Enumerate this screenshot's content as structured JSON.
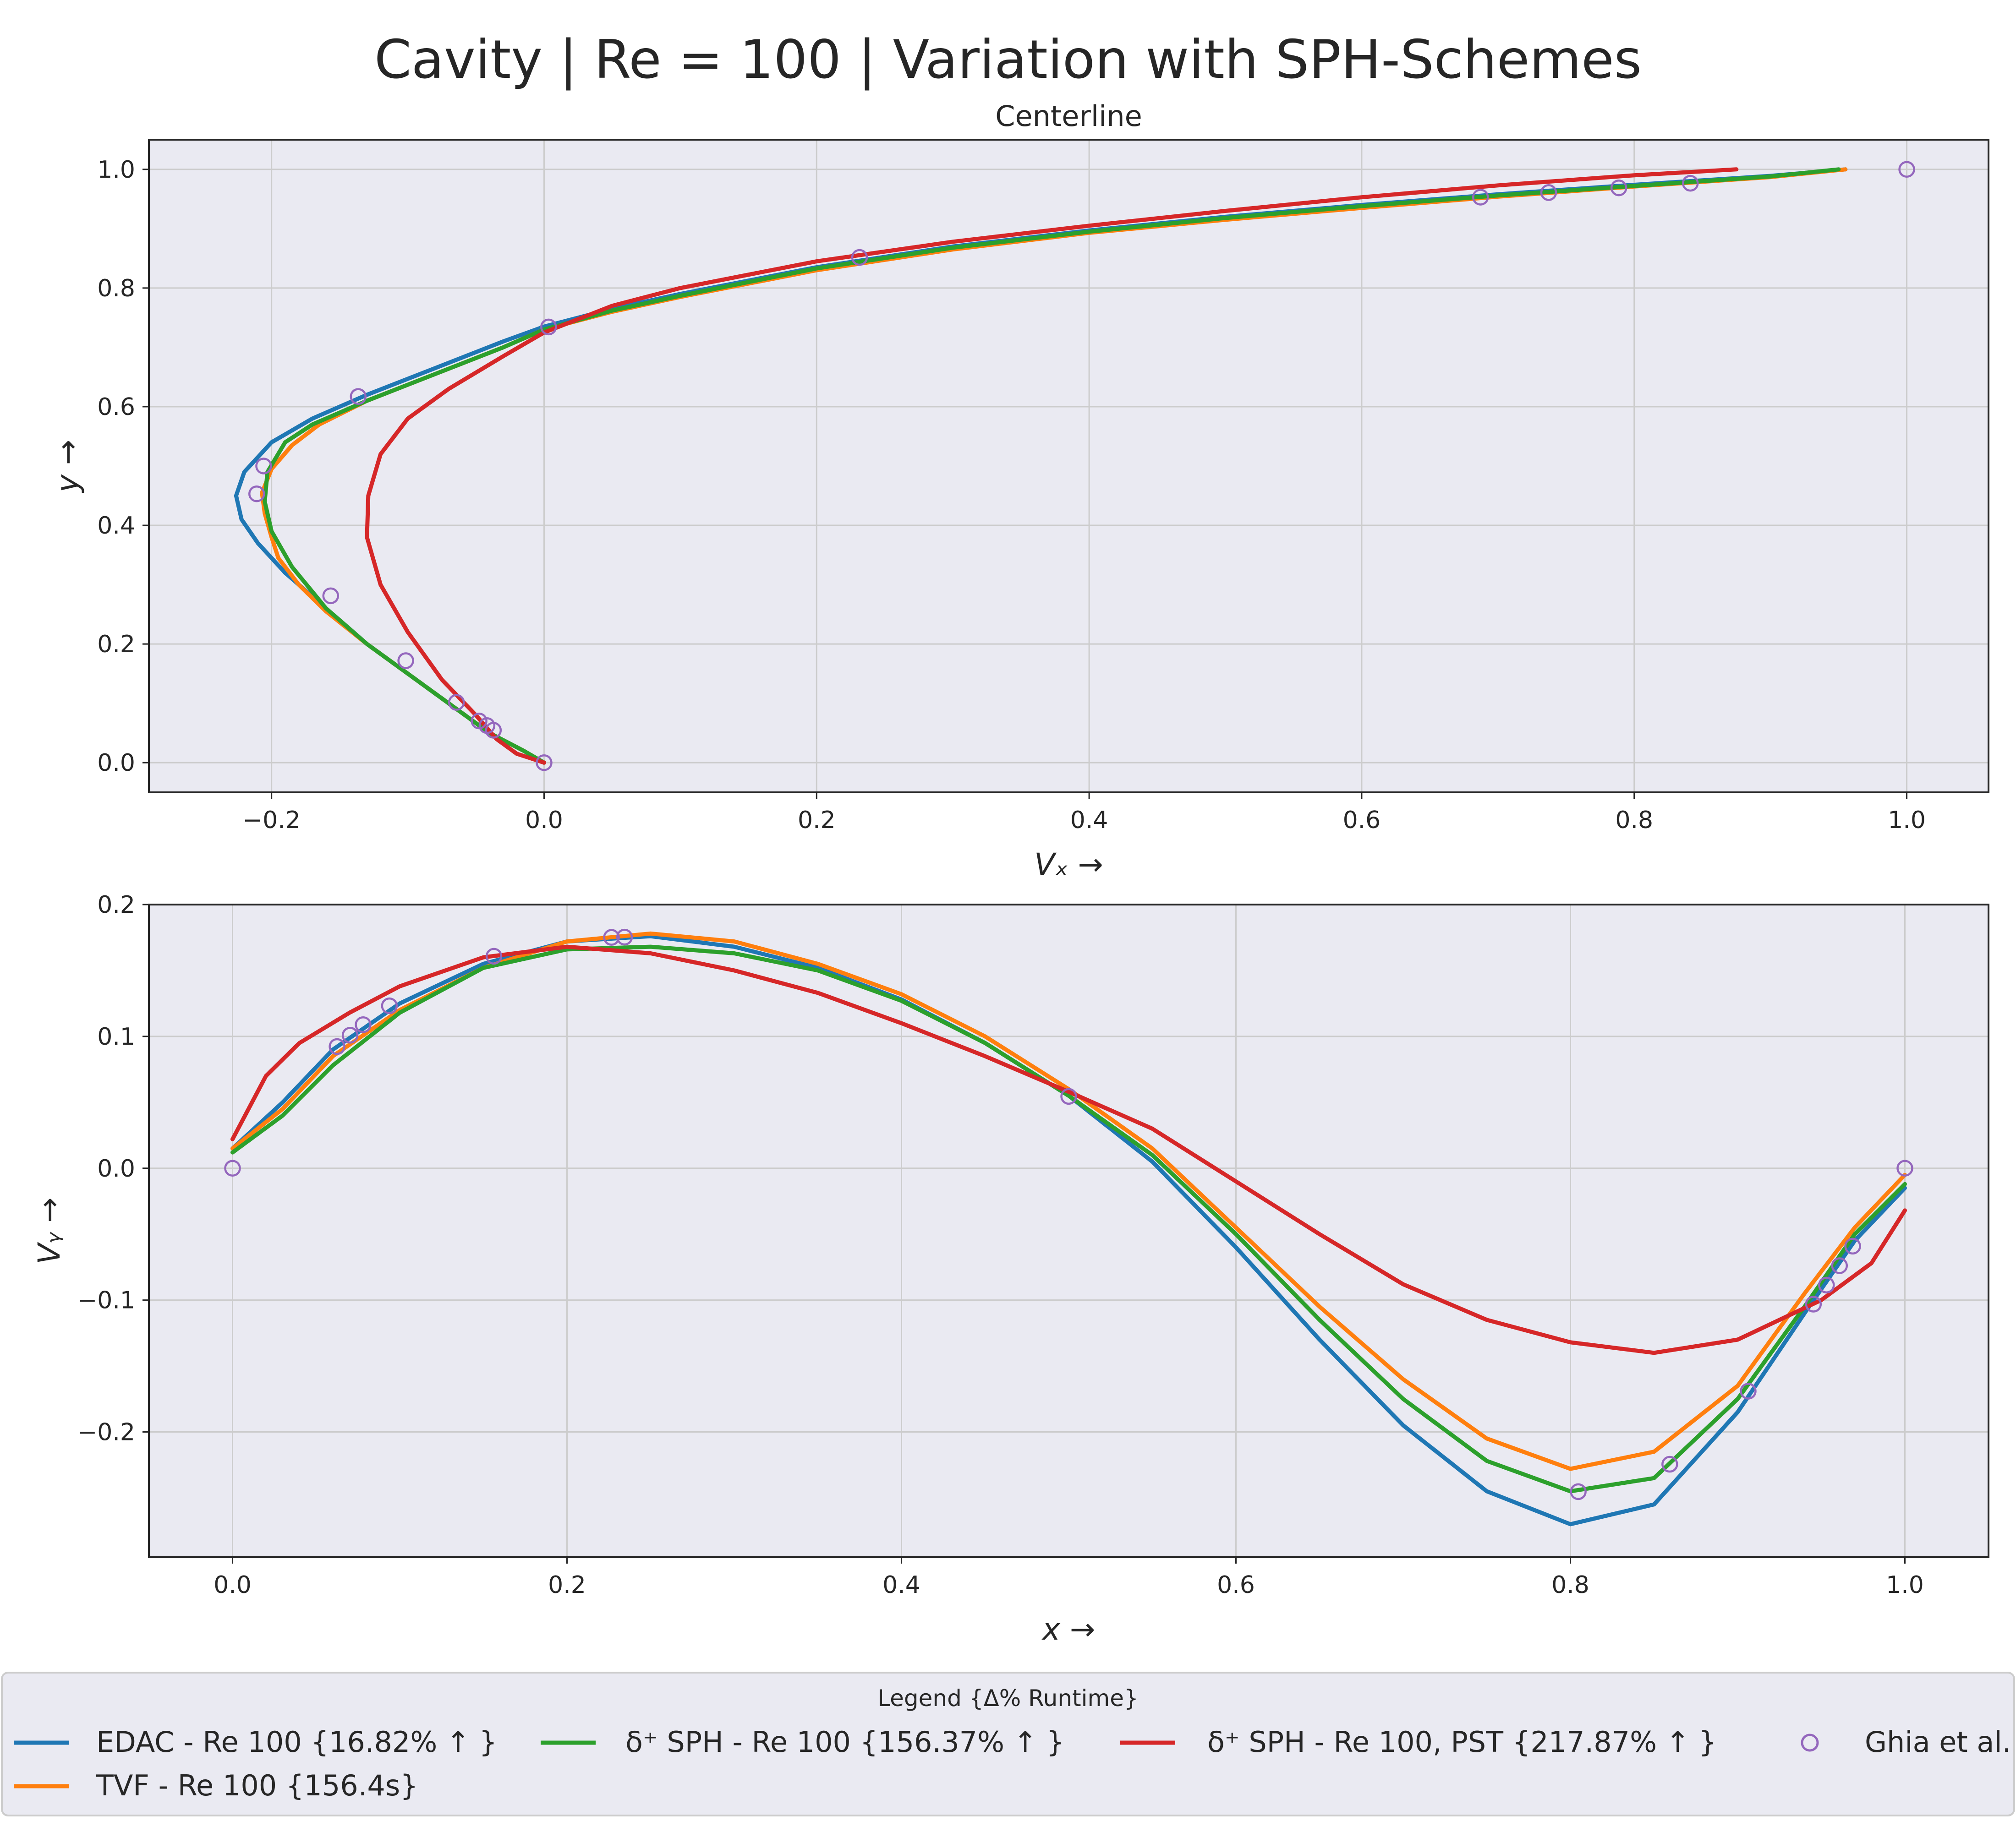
{
  "title": "Cavity | Re = 100 | Variation with SPH-Schemes",
  "colors": {
    "edac": "#1f77b4",
    "tvf": "#ff7f0e",
    "dsph": "#2ca02c",
    "dsph_pst": "#d62728",
    "ghia": "#9467bd",
    "axes_bg": "#eaeaf2",
    "grid": "#cccccc"
  },
  "legend": {
    "title": "Legend {Δ% Runtime}",
    "placement": "bottom",
    "items": [
      {
        "label": "EDAC - Re 100 {16.82% ↑ }"
      },
      {
        "label": "δ⁺ SPH - Re 100 {156.37% ↑ }"
      },
      {
        "label": "δ⁺ SPH - Re 100, PST {217.87% ↑ }"
      },
      {
        "label": "Ghia et al."
      },
      {
        "label": "TVF - Re 100 {156.4s}"
      }
    ]
  },
  "chart_data": [
    {
      "type": "line",
      "title": "Centerline",
      "xlabel": "Vₓ →",
      "ylabel": "y →",
      "xlim": [
        -0.29,
        1.06
      ],
      "ylim": [
        -0.05,
        1.05
      ],
      "xticks": [
        -0.2,
        0.0,
        0.2,
        0.4,
        0.6,
        0.8,
        1.0
      ],
      "xtick_labels": [
        "−0.2",
        "0.0",
        "0.2",
        "0.4",
        "0.6",
        "0.8",
        "1.0"
      ],
      "yticks": [
        0.0,
        0.2,
        0.4,
        0.6,
        0.8,
        1.0
      ],
      "ytick_labels": [
        "0.0",
        "0.2",
        "0.4",
        "0.6",
        "0.8",
        "1.0"
      ],
      "grid": true,
      "series": [
        {
          "key": "edac",
          "x": [
            0.0,
            -0.015,
            -0.04,
            -0.07,
            -0.1,
            -0.13,
            -0.16,
            -0.19,
            -0.21,
            -0.222,
            -0.226,
            -0.22,
            -0.2,
            -0.17,
            -0.13,
            -0.08,
            -0.03,
            0.0,
            0.05,
            0.1,
            0.2,
            0.3,
            0.4,
            0.5,
            0.6,
            0.7,
            0.8,
            0.9,
            0.955
          ],
          "y": [
            0.0,
            0.02,
            0.05,
            0.1,
            0.15,
            0.2,
            0.26,
            0.32,
            0.37,
            0.41,
            0.45,
            0.49,
            0.54,
            0.58,
            0.62,
            0.665,
            0.71,
            0.735,
            0.765,
            0.79,
            0.835,
            0.87,
            0.897,
            0.92,
            0.94,
            0.958,
            0.974,
            0.989,
            1.0
          ]
        },
        {
          "key": "tvf",
          "x": [
            0.0,
            -0.015,
            -0.04,
            -0.07,
            -0.1,
            -0.13,
            -0.16,
            -0.18,
            -0.195,
            -0.2,
            -0.205,
            -0.207,
            -0.2,
            -0.185,
            -0.165,
            -0.13,
            -0.08,
            -0.03,
            0.0,
            0.05,
            0.1,
            0.2,
            0.3,
            0.4,
            0.5,
            0.6,
            0.7,
            0.8,
            0.9,
            0.955
          ],
          "y": [
            0.0,
            0.02,
            0.05,
            0.1,
            0.15,
            0.2,
            0.255,
            0.3,
            0.345,
            0.38,
            0.42,
            0.455,
            0.495,
            0.535,
            0.57,
            0.61,
            0.655,
            0.7,
            0.73,
            0.76,
            0.785,
            0.83,
            0.865,
            0.893,
            0.915,
            0.935,
            0.954,
            0.971,
            0.987,
            1.0
          ]
        },
        {
          "key": "dsph",
          "x": [
            0.0,
            -0.015,
            -0.04,
            -0.07,
            -0.1,
            -0.13,
            -0.16,
            -0.185,
            -0.2,
            -0.205,
            -0.203,
            -0.19,
            -0.17,
            -0.13,
            -0.08,
            -0.03,
            0.0,
            0.05,
            0.1,
            0.2,
            0.3,
            0.4,
            0.5,
            0.6,
            0.7,
            0.8,
            0.9,
            0.95
          ],
          "y": [
            0.0,
            0.02,
            0.05,
            0.1,
            0.15,
            0.2,
            0.26,
            0.33,
            0.39,
            0.44,
            0.49,
            0.54,
            0.57,
            0.61,
            0.655,
            0.7,
            0.73,
            0.762,
            0.787,
            0.833,
            0.868,
            0.895,
            0.918,
            0.938,
            0.956,
            0.972,
            0.988,
            1.0
          ]
        },
        {
          "key": "dsph_pst",
          "x": [
            0.0,
            -0.02,
            -0.035,
            -0.05,
            -0.075,
            -0.1,
            -0.12,
            -0.13,
            -0.129,
            -0.12,
            -0.1,
            -0.07,
            -0.03,
            0.0,
            0.05,
            0.1,
            0.2,
            0.3,
            0.4,
            0.5,
            0.6,
            0.7,
            0.8,
            0.875
          ],
          "y": [
            0.0,
            0.015,
            0.04,
            0.08,
            0.14,
            0.22,
            0.3,
            0.38,
            0.45,
            0.52,
            0.58,
            0.63,
            0.685,
            0.725,
            0.77,
            0.8,
            0.845,
            0.878,
            0.905,
            0.93,
            0.953,
            0.973,
            0.99,
            1.0
          ]
        }
      ],
      "markers": {
        "key": "ghia",
        "x": [
          0.0,
          -0.0372,
          -0.0419,
          -0.0477,
          -0.0643,
          -0.1015,
          -0.1566,
          -0.2109,
          -0.2058,
          -0.1364,
          0.0033,
          0.2315,
          0.6872,
          0.7372,
          0.7887,
          0.8412,
          1.0
        ],
        "y": [
          0.0,
          0.0547,
          0.0625,
          0.0703,
          0.1016,
          0.1719,
          0.2813,
          0.4531,
          0.5,
          0.6172,
          0.7344,
          0.8516,
          0.9531,
          0.9609,
          0.9688,
          0.9766,
          1.0
        ]
      }
    },
    {
      "type": "line",
      "title": "",
      "xlabel": "x →",
      "ylabel": "Vᵧ →",
      "xlim": [
        -0.05,
        1.05
      ],
      "ylim": [
        -0.295,
        0.2
      ],
      "xticks": [
        0.0,
        0.2,
        0.4,
        0.6,
        0.8,
        1.0
      ],
      "xtick_labels": [
        "0.0",
        "0.2",
        "0.4",
        "0.6",
        "0.8",
        "1.0"
      ],
      "yticks": [
        -0.2,
        -0.1,
        0.0,
        0.1,
        0.2
      ],
      "ytick_labels": [
        "−0.2",
        "−0.1",
        "0.0",
        "0.1",
        "0.2"
      ],
      "grid": true,
      "series": [
        {
          "key": "edac",
          "x": [
            0.0,
            0.03,
            0.06,
            0.1,
            0.15,
            0.2,
            0.25,
            0.3,
            0.35,
            0.4,
            0.45,
            0.5,
            0.55,
            0.6,
            0.65,
            0.7,
            0.75,
            0.8,
            0.85,
            0.9,
            0.94,
            0.97,
            1.0
          ],
          "y": [
            0.015,
            0.05,
            0.09,
            0.125,
            0.155,
            0.172,
            0.176,
            0.168,
            0.152,
            0.128,
            0.095,
            0.055,
            0.005,
            -0.06,
            -0.13,
            -0.195,
            -0.245,
            -0.27,
            -0.255,
            -0.185,
            -0.11,
            -0.055,
            -0.015
          ]
        },
        {
          "key": "tvf",
          "x": [
            0.0,
            0.03,
            0.06,
            0.1,
            0.15,
            0.2,
            0.25,
            0.3,
            0.35,
            0.4,
            0.45,
            0.5,
            0.55,
            0.6,
            0.65,
            0.7,
            0.75,
            0.8,
            0.85,
            0.9,
            0.94,
            0.97,
            1.0
          ],
          "y": [
            0.015,
            0.045,
            0.085,
            0.12,
            0.152,
            0.172,
            0.178,
            0.172,
            0.155,
            0.132,
            0.1,
            0.06,
            0.015,
            -0.045,
            -0.105,
            -0.16,
            -0.205,
            -0.228,
            -0.215,
            -0.165,
            -0.095,
            -0.045,
            -0.005
          ]
        },
        {
          "key": "dsph",
          "x": [
            0.0,
            0.03,
            0.06,
            0.1,
            0.15,
            0.2,
            0.25,
            0.3,
            0.35,
            0.4,
            0.45,
            0.5,
            0.55,
            0.6,
            0.65,
            0.7,
            0.75,
            0.8,
            0.85,
            0.9,
            0.94,
            0.97,
            1.0
          ],
          "y": [
            0.012,
            0.04,
            0.078,
            0.118,
            0.152,
            0.166,
            0.168,
            0.163,
            0.15,
            0.127,
            0.095,
            0.055,
            0.01,
            -0.05,
            -0.115,
            -0.175,
            -0.222,
            -0.245,
            -0.235,
            -0.175,
            -0.105,
            -0.05,
            -0.012
          ]
        },
        {
          "key": "dsph_pst",
          "x": [
            0.0,
            0.02,
            0.04,
            0.07,
            0.1,
            0.15,
            0.2,
            0.25,
            0.3,
            0.35,
            0.4,
            0.45,
            0.5,
            0.55,
            0.6,
            0.65,
            0.7,
            0.75,
            0.8,
            0.85,
            0.9,
            0.95,
            0.98,
            1.0
          ],
          "y": [
            0.022,
            0.07,
            0.095,
            0.118,
            0.138,
            0.16,
            0.168,
            0.163,
            0.15,
            0.133,
            0.11,
            0.085,
            0.058,
            0.03,
            -0.01,
            -0.05,
            -0.088,
            -0.115,
            -0.132,
            -0.14,
            -0.13,
            -0.1,
            -0.072,
            -0.032
          ]
        }
      ],
      "markers": {
        "key": "ghia",
        "x": [
          0.0,
          0.0625,
          0.0703,
          0.0781,
          0.0938,
          0.1563,
          0.2266,
          0.2344,
          0.5,
          0.8047,
          0.8594,
          0.9063,
          0.9453,
          0.9531,
          0.9609,
          0.9688,
          1.0
        ],
        "y": [
          0.0,
          0.0923,
          0.1009,
          0.1089,
          0.1232,
          0.1608,
          0.1751,
          0.1753,
          0.0545,
          -0.2453,
          -0.2245,
          -0.1691,
          -0.1031,
          -0.0886,
          -0.0739,
          -0.0591,
          0.0
        ]
      }
    }
  ]
}
